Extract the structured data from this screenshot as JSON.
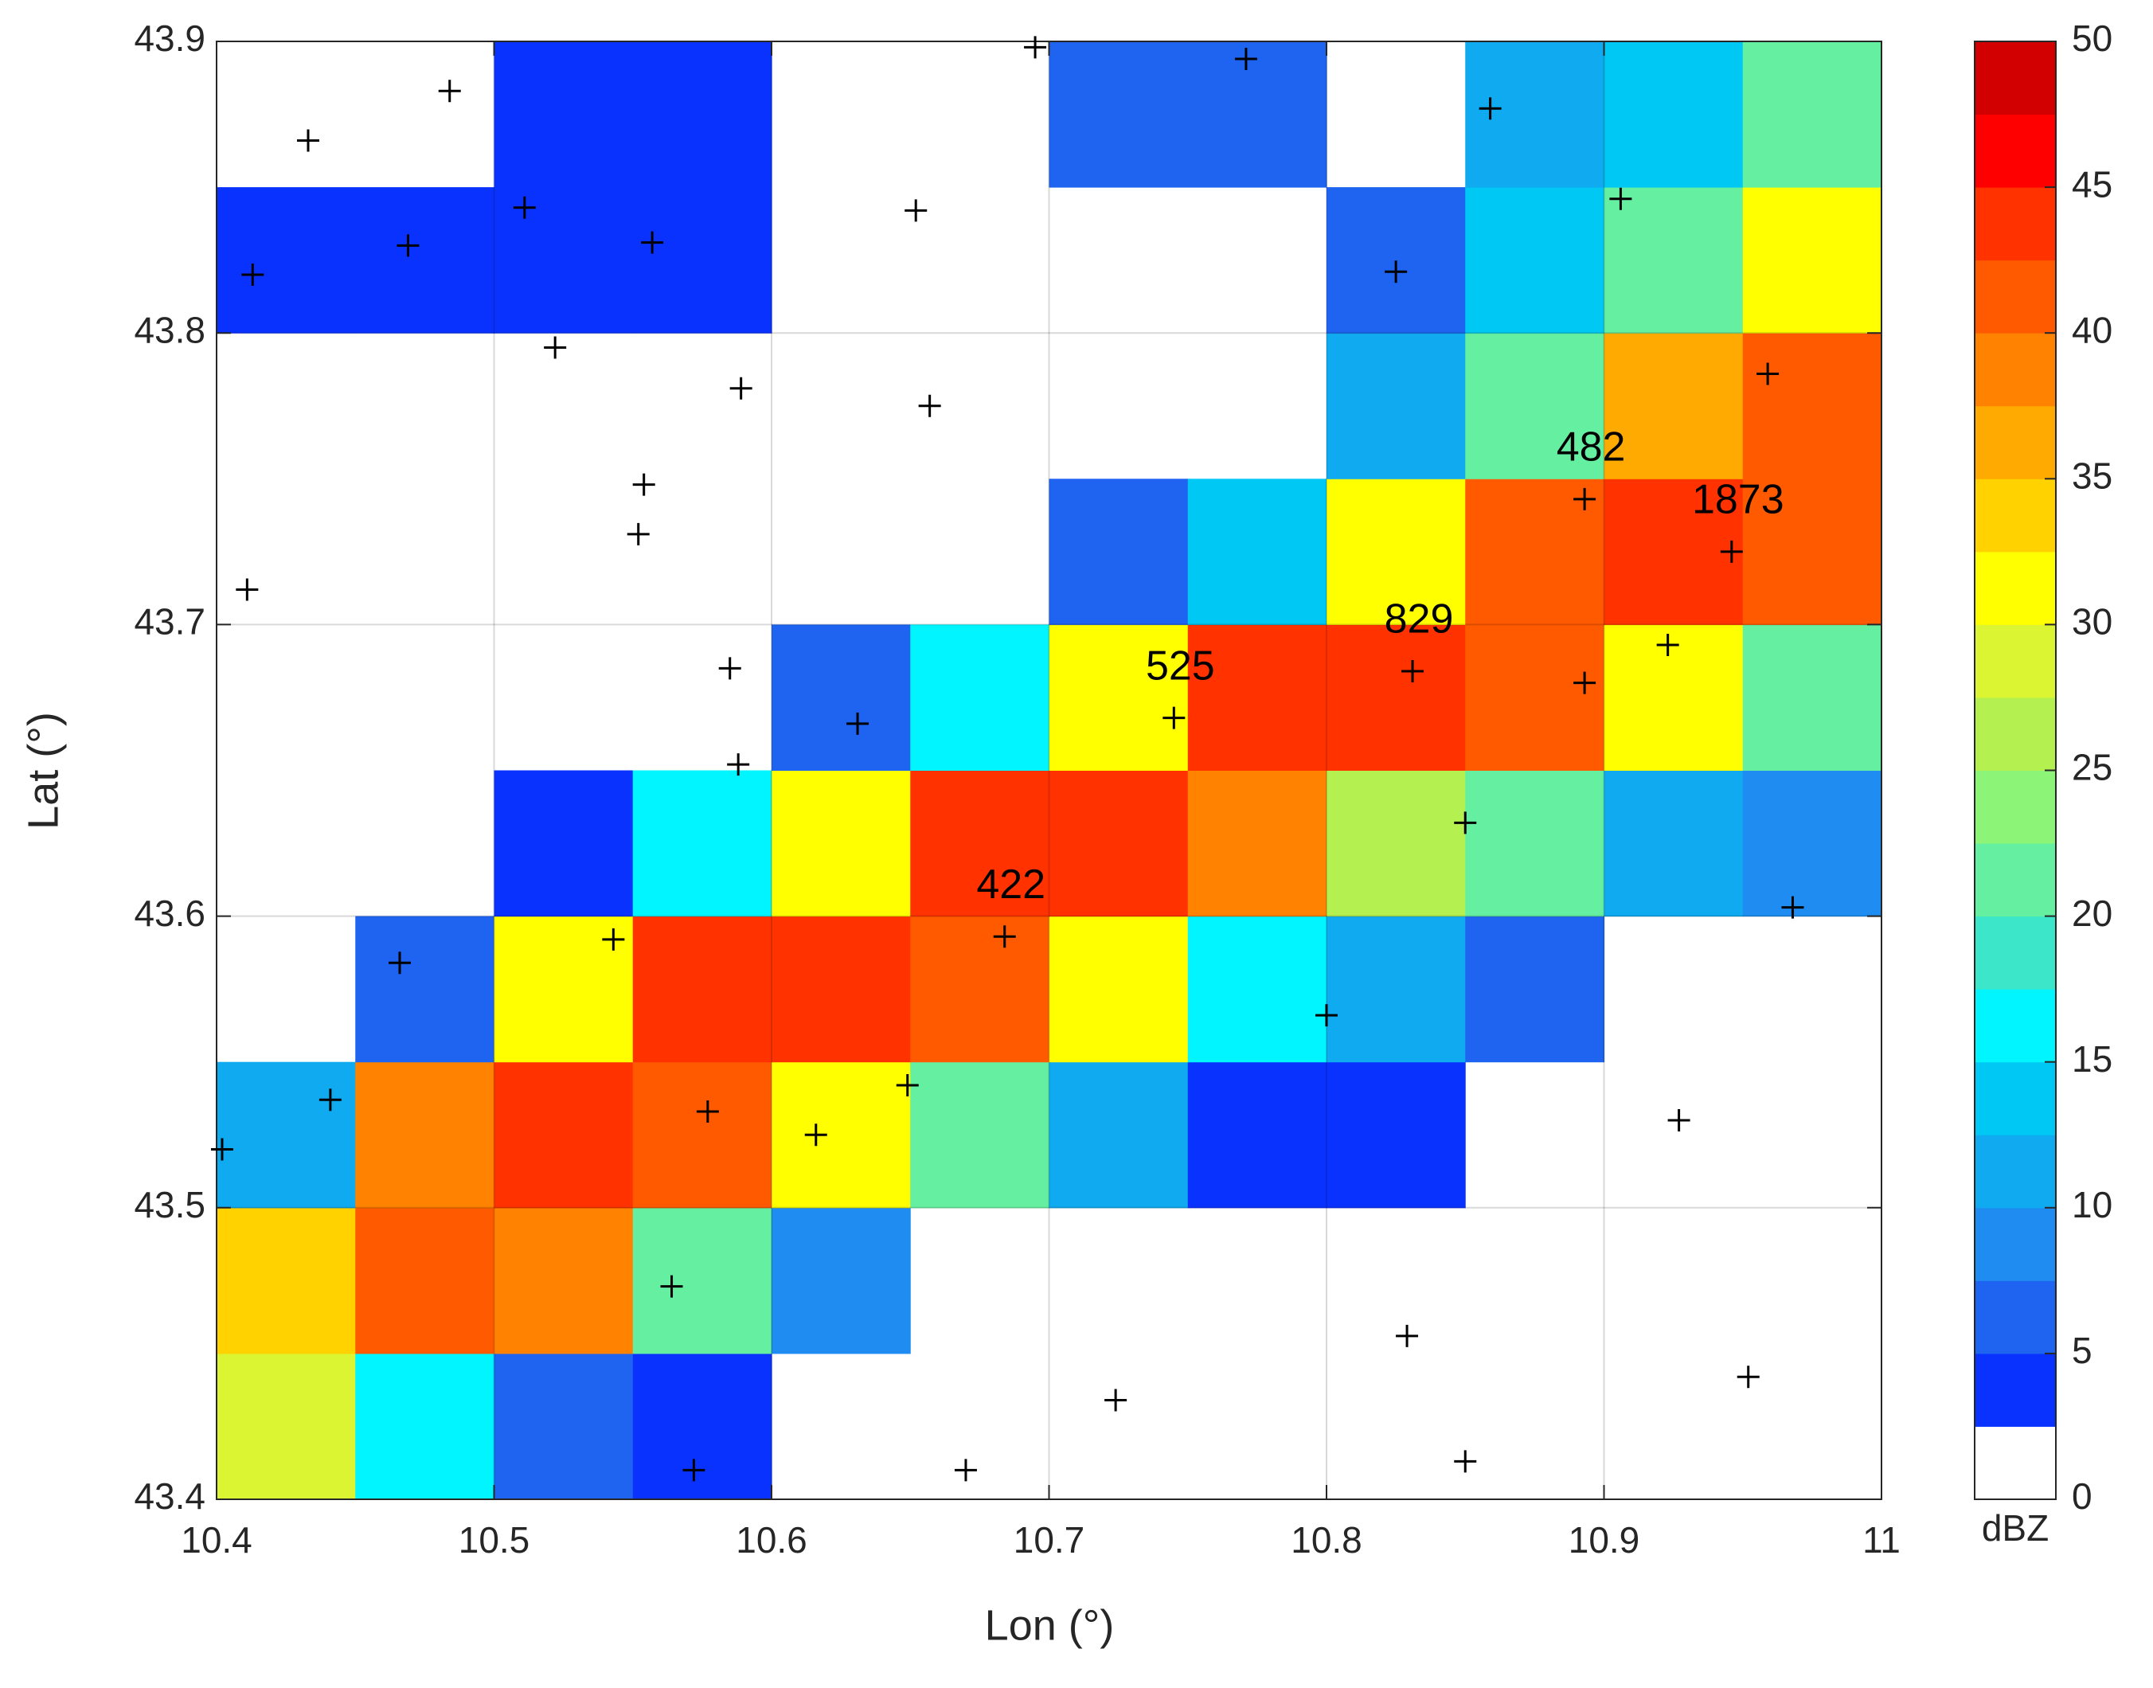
{
  "chart_data": {
    "type": "heatmap",
    "xlabel": "Lon (°)",
    "ylabel": "Lat (°)",
    "xlim": [
      10.4,
      11
    ],
    "ylim": [
      43.4,
      43.9
    ],
    "xticks": [
      10.4,
      10.5,
      10.6,
      10.7,
      10.8,
      10.9,
      11
    ],
    "yticks": [
      43.4,
      43.5,
      43.6,
      43.7,
      43.8,
      43.9
    ],
    "grid": true,
    "x": [
      10.425,
      10.475,
      10.525,
      10.575,
      10.625,
      10.675,
      10.725,
      10.775,
      10.825,
      10.875,
      10.925,
      10.975
    ],
    "y": [
      43.425,
      43.475,
      43.525,
      43.575,
      43.625,
      43.675,
      43.725,
      43.775,
      43.825,
      43.875
    ],
    "values": [
      [
        28,
        15,
        7,
        3,
        null,
        null,
        null,
        null,
        null,
        null,
        null,
        null
      ],
      [
        33,
        40,
        38,
        22,
        8,
        null,
        null,
        null,
        null,
        null,
        null,
        null
      ],
      [
        12,
        38,
        44,
        41,
        30,
        20,
        10,
        4,
        4,
        null,
        null,
        null
      ],
      [
        null,
        6,
        30,
        43,
        44,
        40,
        31,
        17,
        10,
        5,
        null,
        null
      ],
      [
        null,
        null,
        4,
        15,
        32,
        43,
        44,
        38,
        27,
        20,
        12,
        8
      ],
      [
        null,
        null,
        null,
        null,
        6,
        17,
        32,
        43,
        44,
        40,
        30,
        20
      ],
      [
        null,
        null,
        null,
        null,
        null,
        null,
        7,
        14,
        30,
        40,
        44,
        40
      ],
      [
        null,
        null,
        null,
        null,
        null,
        null,
        null,
        null,
        10,
        22,
        37,
        40
      ],
      [
        3,
        4,
        4,
        4,
        null,
        null,
        null,
        null,
        6,
        14,
        22,
        32
      ],
      [
        null,
        null,
        4,
        4,
        null,
        null,
        5,
        6,
        null,
        10,
        14,
        20
      ]
    ],
    "colorbar": {
      "label": "dBZ",
      "clim": [
        0,
        50
      ],
      "ticks": [
        0,
        5,
        10,
        15,
        20,
        25,
        30,
        35,
        40,
        45,
        50
      ],
      "colors": [
        "#ffffff",
        "#0a32ff",
        "#1e64f0",
        "#1e8cf0",
        "#0faaf0",
        "#00c8f5",
        "#00f5ff",
        "#3ce6c8",
        "#64f0a0",
        "#8cf578",
        "#b4f050",
        "#dcf532",
        "#ffff00",
        "#ffd200",
        "#ffaa00",
        "#ff8200",
        "#ff5a00",
        "#ff3200",
        "#ff0000",
        "#d20000"
      ]
    },
    "stations": {
      "lon": [
        10.433,
        10.484,
        10.413,
        10.469,
        10.511,
        10.557,
        10.522,
        10.695,
        10.771,
        10.859,
        10.906,
        10.652,
        10.825,
        10.589,
        10.657,
        10.959,
        10.554,
        10.552,
        10.411,
        10.585,
        10.588,
        10.631,
        10.923,
        10.893,
        10.85,
        10.968,
        10.466,
        10.543,
        10.8,
        10.441,
        10.577,
        10.616,
        10.649,
        10.927,
        10.402,
        10.564,
        10.829,
        10.952,
        10.724,
        10.85,
        10.572,
        10.67
      ],
      "lat": [
        43.866,
        43.883,
        43.82,
        43.83,
        43.843,
        43.831,
        43.795,
        43.898,
        43.894,
        43.877,
        43.846,
        43.842,
        43.821,
        43.781,
        43.775,
        43.786,
        43.748,
        43.731,
        43.712,
        43.685,
        43.652,
        43.666,
        43.693,
        43.68,
        43.632,
        43.603,
        43.584,
        43.592,
        43.566,
        43.537,
        43.533,
        43.525,
        43.542,
        43.53,
        43.52,
        43.473,
        43.456,
        43.442,
        43.434,
        43.413,
        43.41,
        43.41
      ]
    },
    "labeled_stations": {
      "lon": [
        10.684,
        10.745,
        10.831,
        10.893,
        10.946
      ],
      "lat": [
        43.593,
        43.668,
        43.684,
        43.743,
        43.725
      ],
      "labels": [
        422,
        525,
        829,
        482,
        1873
      ]
    }
  }
}
